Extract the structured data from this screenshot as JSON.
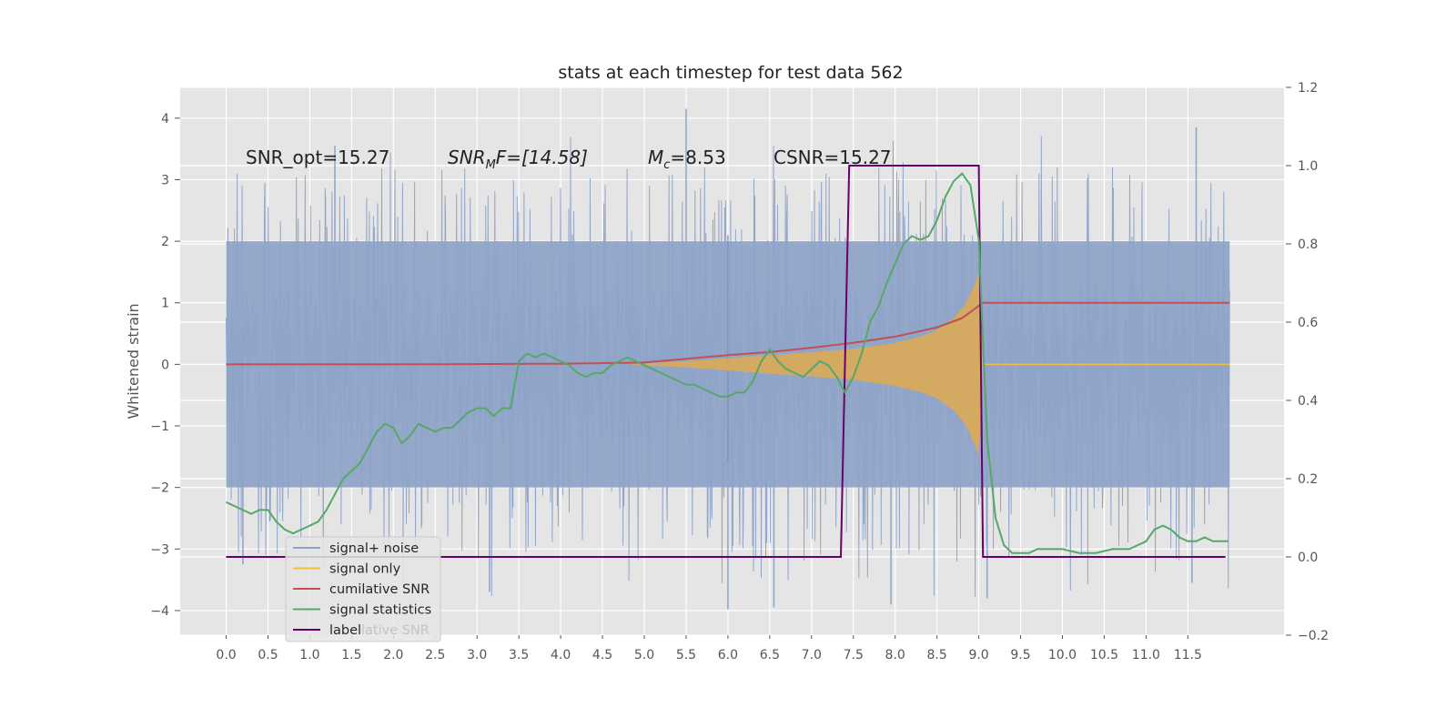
{
  "chart_data": {
    "type": "line",
    "title": "stats at each timestep for test data 562",
    "ylabel": "Whitened strain",
    "xlabel": "",
    "xlim": [
      -0.55,
      12.65
    ],
    "ylim": [
      -4.4,
      4.5
    ],
    "y2lim": [
      -0.2,
      1.2
    ],
    "x_tick_labels": [
      "0.0",
      "0.5",
      "1.0",
      "1.5",
      "2.0",
      "2.5",
      "3.0",
      "3.5",
      "4.0",
      "4.5",
      "5.0",
      "5.5",
      "6.0",
      "6.5",
      "7.0",
      "7.5",
      "8.0",
      "8.5",
      "9.0",
      "9.5",
      "10.0",
      "10.5",
      "11.0",
      "11.5"
    ],
    "y_tick_labels": [
      "−4",
      "−3",
      "−2",
      "−1",
      "0",
      "1",
      "2",
      "3",
      "4"
    ],
    "y2_tick_labels": [
      "−0.2",
      "0.0",
      "0.2",
      "0.4",
      "0.6",
      "0.8",
      "1.0",
      "1.2"
    ],
    "grid": true,
    "legend_position": "lower-left",
    "annotations": {
      "snr_opt": "SNR_opt=15.27",
      "snr_mf_prefix": "SNR",
      "snr_mf_sub": "M",
      "snr_mf_rest": "F=[14.58]",
      "mc_prefix": "M",
      "mc_sub": "c",
      "mc_rest": "=8.53",
      "csnr": "CSNR=15.27"
    },
    "series": [
      {
        "name": "signal+ noise",
        "color": "#8ea3c8",
        "axis": "left",
        "x_range": [
          0.0,
          12.0
        ],
        "amplitude_envelope": 2.0,
        "peak_max": 4.15,
        "peak_min": -3.98
      },
      {
        "name": "signal only",
        "color": "#f0c040",
        "fill": "#dcaa55",
        "axis": "left",
        "envelope_x": [
          4.8,
          5.5,
          6.0,
          6.5,
          7.0,
          7.5,
          8.0,
          8.3,
          8.5,
          8.7,
          8.85,
          8.95,
          9.0,
          9.05,
          12.0
        ],
        "envelope_y": [
          0.0,
          0.05,
          0.1,
          0.15,
          0.2,
          0.25,
          0.35,
          0.45,
          0.55,
          0.75,
          1.0,
          1.3,
          1.5,
          0.0,
          0.0
        ]
      },
      {
        "name": "cumilative SNR",
        "color": "#c44e52",
        "axis": "left",
        "x": [
          0.0,
          2.0,
          4.0,
          5.0,
          6.0,
          6.5,
          7.0,
          7.5,
          8.0,
          8.5,
          8.8,
          9.0,
          9.02,
          12.0
        ],
        "y": [
          0.0,
          0.0,
          0.01,
          0.03,
          0.15,
          0.2,
          0.27,
          0.35,
          0.45,
          0.6,
          0.75,
          0.95,
          1.0,
          1.0
        ]
      },
      {
        "name": "signal statistics",
        "color": "#55a868",
        "axis": "right",
        "x": [
          0.0,
          0.1,
          0.2,
          0.3,
          0.4,
          0.5,
          0.6,
          0.7,
          0.8,
          0.9,
          1.0,
          1.1,
          1.2,
          1.3,
          1.4,
          1.5,
          1.6,
          1.7,
          1.8,
          1.9,
          2.0,
          2.1,
          2.2,
          2.3,
          2.4,
          2.5,
          2.6,
          2.7,
          2.8,
          2.9,
          3.0,
          3.1,
          3.2,
          3.3,
          3.4,
          3.5,
          3.6,
          3.7,
          3.8,
          3.9,
          4.0,
          4.1,
          4.2,
          4.3,
          4.4,
          4.5,
          4.6,
          4.7,
          4.8,
          4.9,
          5.0,
          5.1,
          5.2,
          5.3,
          5.4,
          5.5,
          5.6,
          5.7,
          5.8,
          5.9,
          6.0,
          6.1,
          6.2,
          6.3,
          6.4,
          6.5,
          6.6,
          6.7,
          6.8,
          6.9,
          7.0,
          7.1,
          7.2,
          7.3,
          7.4,
          7.5,
          7.6,
          7.7,
          7.8,
          7.9,
          8.0,
          8.1,
          8.2,
          8.3,
          8.4,
          8.5,
          8.6,
          8.7,
          8.8,
          8.9,
          9.0,
          9.05,
          9.1,
          9.2,
          9.3,
          9.4,
          9.5,
          9.6,
          9.7,
          9.8,
          9.9,
          10.0,
          10.2,
          10.4,
          10.6,
          10.8,
          11.0,
          11.1,
          11.2,
          11.3,
          11.4,
          11.5,
          11.6,
          11.7,
          11.8,
          11.9,
          11.98
        ],
        "y": [
          0.14,
          0.13,
          0.12,
          0.11,
          0.12,
          0.12,
          0.09,
          0.07,
          0.06,
          0.07,
          0.08,
          0.09,
          0.12,
          0.16,
          0.2,
          0.22,
          0.24,
          0.28,
          0.32,
          0.34,
          0.33,
          0.29,
          0.31,
          0.34,
          0.33,
          0.32,
          0.33,
          0.33,
          0.35,
          0.37,
          0.38,
          0.38,
          0.36,
          0.38,
          0.38,
          0.5,
          0.52,
          0.51,
          0.52,
          0.51,
          0.5,
          0.49,
          0.47,
          0.46,
          0.47,
          0.47,
          0.49,
          0.5,
          0.51,
          0.5,
          0.49,
          0.48,
          0.47,
          0.46,
          0.45,
          0.44,
          0.44,
          0.43,
          0.42,
          0.41,
          0.41,
          0.42,
          0.42,
          0.45,
          0.5,
          0.53,
          0.5,
          0.48,
          0.47,
          0.46,
          0.48,
          0.5,
          0.49,
          0.46,
          0.42,
          0.46,
          0.52,
          0.6,
          0.64,
          0.7,
          0.75,
          0.8,
          0.82,
          0.81,
          0.82,
          0.86,
          0.92,
          0.96,
          0.98,
          0.95,
          0.81,
          0.55,
          0.3,
          0.1,
          0.03,
          0.01,
          0.01,
          0.01,
          0.02,
          0.02,
          0.02,
          0.02,
          0.01,
          0.01,
          0.02,
          0.02,
          0.04,
          0.07,
          0.08,
          0.07,
          0.05,
          0.04,
          0.04,
          0.05,
          0.04,
          0.04,
          0.04
        ]
      },
      {
        "name": "label",
        "color": "#6a006a",
        "axis": "right",
        "x": [
          0.0,
          7.35,
          7.45,
          9.0,
          9.05,
          11.95
        ],
        "y": [
          0.0,
          0.0,
          1.0,
          1.0,
          0.0,
          0.0
        ]
      }
    ]
  },
  "legend": {
    "entries": [
      {
        "label": "signal+ noise",
        "color": "#8ea3c8"
      },
      {
        "label": "signal only",
        "color": "#f0c040"
      },
      {
        "label": "cumilative SNR",
        "color": "#c44e52"
      },
      {
        "label": "signal statistics",
        "color": "#55a868"
      },
      {
        "label": "label",
        "color": "#6a006a"
      }
    ],
    "ghost_text": "lative SNR"
  }
}
